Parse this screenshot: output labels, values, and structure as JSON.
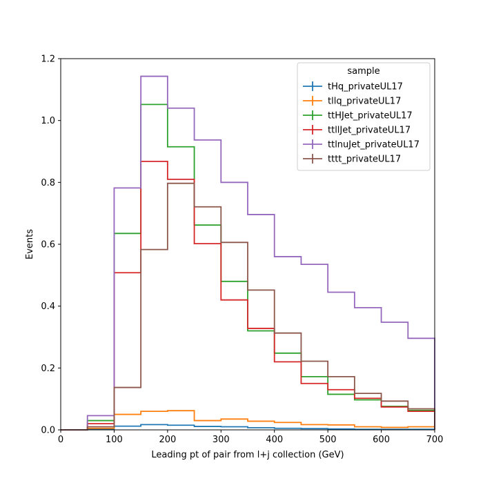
{
  "chart_data": {
    "type": "line",
    "style": "step-histogram",
    "xlabel": "Leading pt of pair from l+j collection (GeV)",
    "ylabel": "Events",
    "xlim": [
      0,
      700
    ],
    "ylim": [
      0,
      1.2
    ],
    "x_ticks": [
      "0",
      "100",
      "200",
      "300",
      "400",
      "500",
      "600",
      "700"
    ],
    "y_ticks": [
      "0.0",
      "0.2",
      "0.4",
      "0.6",
      "0.8",
      "1.0",
      "1.2"
    ],
    "bin_edges": [
      0,
      50,
      100,
      150,
      200,
      250,
      300,
      350,
      400,
      450,
      500,
      550,
      600,
      650,
      700
    ],
    "grid": false,
    "legend": {
      "title": "sample",
      "placement": "top-right"
    },
    "series": [
      {
        "name": "tHq_privateUL17",
        "color": "#1f77b4",
        "values": [
          0.0,
          0.003,
          0.012,
          0.017,
          0.015,
          0.011,
          0.01,
          0.007,
          0.005,
          0.004,
          0.003,
          0.002,
          0.002,
          0.002
        ]
      },
      {
        "name": "tllq_privateUL17",
        "color": "#ff7f0e",
        "values": [
          0.0,
          0.005,
          0.05,
          0.06,
          0.062,
          0.03,
          0.035,
          0.028,
          0.024,
          0.017,
          0.016,
          0.01,
          0.008,
          0.01
        ]
      },
      {
        "name": "ttHJet_privateUL17",
        "color": "#2ca02c",
        "values": [
          0.0,
          0.03,
          0.635,
          1.052,
          0.915,
          0.662,
          0.48,
          0.32,
          0.248,
          0.172,
          0.115,
          0.097,
          0.076,
          0.063
        ]
      },
      {
        "name": "ttllJet_privateUL17",
        "color": "#d62728",
        "values": [
          0.0,
          0.02,
          0.508,
          0.868,
          0.81,
          0.602,
          0.42,
          0.328,
          0.22,
          0.15,
          0.13,
          0.102,
          0.074,
          0.06
        ]
      },
      {
        "name": "ttlnuJet_privateUL17",
        "color": "#9467bd",
        "values": [
          0.0,
          0.046,
          0.782,
          1.143,
          1.04,
          0.937,
          0.8,
          0.696,
          0.56,
          0.535,
          0.445,
          0.395,
          0.348,
          0.296
        ]
      },
      {
        "name": "tttt_privateUL17",
        "color": "#8c564b",
        "values": [
          0.0,
          0.01,
          0.137,
          0.583,
          0.797,
          0.721,
          0.606,
          0.452,
          0.313,
          0.222,
          0.172,
          0.118,
          0.093,
          0.068
        ]
      }
    ]
  }
}
